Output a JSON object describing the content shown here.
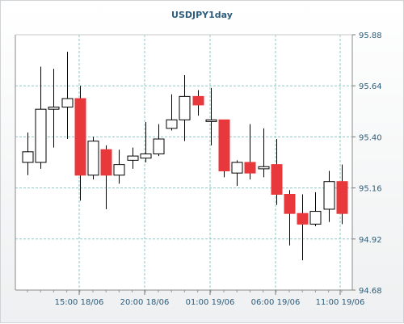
{
  "chart_data": {
    "type": "candlestick",
    "title": "USDJPY1day",
    "y_axis": {
      "ylim": [
        94.68,
        95.88
      ],
      "ticks": [
        "95.88",
        "95.64",
        "95.40",
        "95.16",
        "94.92",
        "94.68"
      ],
      "position": "right"
    },
    "x_axis": {
      "tick_labels": [
        "15:00 18/06",
        "20:00 18/06",
        "01:00 19/06",
        "06:00 19/06",
        "11:00 19/06"
      ]
    },
    "grid": true,
    "colors": {
      "up": "#ffffff",
      "down": "#e8383b",
      "wick": "#000000",
      "grid": "#8fc8c8",
      "axis_text": "#2d5d7b"
    },
    "candles": [
      {
        "open": 95.28,
        "close": 95.33,
        "high": 95.42,
        "low": 95.22
      },
      {
        "open": 95.28,
        "close": 95.53,
        "high": 95.73,
        "low": 95.25
      },
      {
        "open": 95.53,
        "close": 95.54,
        "high": 95.72,
        "low": 95.35
      },
      {
        "open": 95.54,
        "close": 95.58,
        "high": 95.8,
        "low": 95.39
      },
      {
        "open": 95.58,
        "close": 95.22,
        "high": 95.64,
        "low": 95.1
      },
      {
        "open": 95.22,
        "close": 95.38,
        "high": 95.4,
        "low": 95.2
      },
      {
        "open": 95.34,
        "close": 95.22,
        "high": 95.36,
        "low": 95.06
      },
      {
        "open": 95.22,
        "close": 95.27,
        "high": 95.34,
        "low": 95.18
      },
      {
        "open": 95.29,
        "close": 95.31,
        "high": 95.35,
        "low": 95.25
      },
      {
        "open": 95.3,
        "close": 95.32,
        "high": 95.47,
        "low": 95.28
      },
      {
        "open": 95.32,
        "close": 95.39,
        "high": 95.46,
        "low": 95.31
      },
      {
        "open": 95.44,
        "close": 95.48,
        "high": 95.6,
        "low": 95.43
      },
      {
        "open": 95.48,
        "close": 95.59,
        "high": 95.69,
        "low": 95.38
      },
      {
        "open": 95.59,
        "close": 95.55,
        "high": 95.62,
        "low": 95.5
      },
      {
        "open": 95.48,
        "close": 95.48,
        "high": 95.63,
        "low": 95.36
      },
      {
        "open": 95.48,
        "close": 95.24,
        "high": 95.48,
        "low": 95.21
      },
      {
        "open": 95.23,
        "close": 95.28,
        "high": 95.29,
        "low": 95.17
      },
      {
        "open": 95.28,
        "close": 95.23,
        "high": 95.46,
        "low": 95.2
      },
      {
        "open": 95.25,
        "close": 95.26,
        "high": 95.44,
        "low": 95.21
      },
      {
        "open": 95.27,
        "close": 95.13,
        "high": 95.39,
        "low": 95.08
      },
      {
        "open": 95.13,
        "close": 95.04,
        "high": 95.15,
        "low": 94.89
      },
      {
        "open": 95.04,
        "close": 94.99,
        "high": 95.13,
        "low": 94.82
      },
      {
        "open": 94.99,
        "close": 95.05,
        "high": 95.14,
        "low": 94.98
      },
      {
        "open": 95.06,
        "close": 95.19,
        "high": 95.24,
        "low": 95.0
      },
      {
        "open": 95.19,
        "close": 95.04,
        "high": 95.27,
        "low": 94.99
      }
    ]
  }
}
